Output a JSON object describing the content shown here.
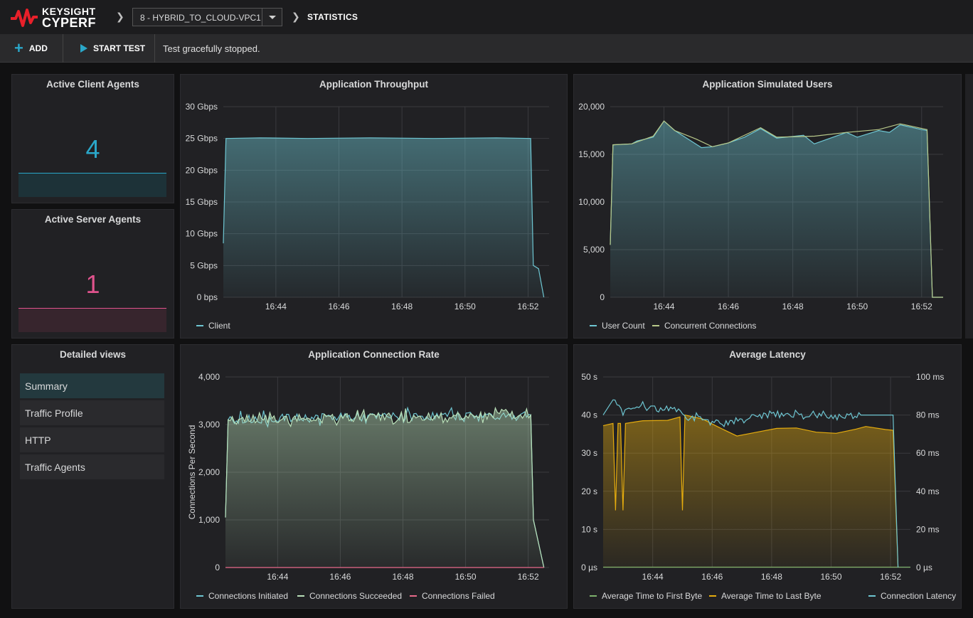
{
  "brand": {
    "line1": "KEYSIGHT",
    "line2": "CYPERF",
    "color": "#e8202a"
  },
  "header": {
    "config_name": "8 - HYBRID_TO_CLOUD-VPC1",
    "breadcrumb": "STATISTICS"
  },
  "toolbar": {
    "add_label": "ADD",
    "start_label": "START TEST",
    "status": "Test gracefully stopped."
  },
  "stats": {
    "client": {
      "title": "Active Client Agents",
      "value": "4",
      "color": "#2aa7c9"
    },
    "server": {
      "title": "Active Server Agents",
      "value": "1",
      "color": "#e0538d"
    }
  },
  "detailed_views": {
    "title": "Detailed views",
    "items": [
      {
        "label": "Summary",
        "active": true
      },
      {
        "label": "Traffic Profile",
        "active": false
      },
      {
        "label": "HTTP",
        "active": false
      },
      {
        "label": "Traffic Agents",
        "active": false
      }
    ]
  },
  "chart_data": [
    {
      "id": "throughput",
      "type": "line",
      "title": "Application Throughput",
      "x_ticks": [
        "16:44",
        "16:46",
        "16:48",
        "16:50",
        "16:52"
      ],
      "y_ticks": [
        "0 bps",
        "5 Gbps",
        "10 Gbps",
        "15 Gbps",
        "20 Gbps",
        "25 Gbps",
        "30 Gbps"
      ],
      "ylim": [
        0,
        30
      ],
      "unit": "Gbps",
      "x_range": [
        "16:42:20",
        "16:52:40"
      ],
      "series": [
        {
          "name": "Client",
          "color": "#6ec6d2",
          "fill": true,
          "points": [
            [
              "16:42:20",
              8.5
            ],
            [
              "16:42:25",
              25
            ],
            [
              "16:43:30",
              25.1
            ],
            [
              "16:45:00",
              25
            ],
            [
              "16:47:00",
              25.1
            ],
            [
              "16:49:00",
              25
            ],
            [
              "16:51:00",
              25.1
            ],
            [
              "16:52:05",
              25
            ],
            [
              "16:52:10",
              5
            ],
            [
              "16:52:20",
              4.5
            ],
            [
              "16:52:30",
              0
            ]
          ]
        }
      ]
    },
    {
      "id": "users",
      "type": "line",
      "title": "Application Simulated Users",
      "x_ticks": [
        "16:44",
        "16:46",
        "16:48",
        "16:50",
        "16:52"
      ],
      "y_ticks": [
        "0",
        "5,000",
        "10,000",
        "15,000",
        "20,000"
      ],
      "ylim": [
        0,
        20000
      ],
      "x_range": [
        "16:42:20",
        "16:52:40"
      ],
      "series": [
        {
          "name": "User Count",
          "color": "#6ec6d2",
          "fill": true,
          "points": [
            [
              "16:42:20",
              5500
            ],
            [
              "16:42:25",
              16000
            ],
            [
              "16:43:00",
              16100
            ],
            [
              "16:43:10",
              16400
            ],
            [
              "16:43:40",
              16800
            ],
            [
              "16:44:00",
              18500
            ],
            [
              "16:44:20",
              17500
            ],
            [
              "16:45:10",
              15700
            ],
            [
              "16:45:30",
              15800
            ],
            [
              "16:46:00",
              16200
            ],
            [
              "16:46:30",
              16800
            ],
            [
              "16:47:00",
              17700
            ],
            [
              "16:47:30",
              16700
            ],
            [
              "16:48:20",
              17000
            ],
            [
              "16:48:40",
              16100
            ],
            [
              "16:49:40",
              17300
            ],
            [
              "16:50:00",
              16800
            ],
            [
              "16:50:40",
              17500
            ],
            [
              "16:51:00",
              17300
            ],
            [
              "16:51:20",
              18100
            ],
            [
              "16:52:00",
              17600
            ],
            [
              "16:52:10",
              17500
            ],
            [
              "16:52:20",
              0
            ],
            [
              "16:52:40",
              0
            ]
          ]
        },
        {
          "name": "Concurrent Connections",
          "color": "#b8c98a",
          "fill": false,
          "points": [
            [
              "16:42:20",
              5500
            ],
            [
              "16:42:25",
              16000
            ],
            [
              "16:43:00",
              16100
            ],
            [
              "16:43:40",
              16900
            ],
            [
              "16:44:00",
              18500
            ],
            [
              "16:44:20",
              17500
            ],
            [
              "16:45:00",
              16600
            ],
            [
              "16:45:30",
              15800
            ],
            [
              "16:46:00",
              16200
            ],
            [
              "16:47:00",
              17800
            ],
            [
              "16:47:30",
              16800
            ],
            [
              "16:48:40",
              16900
            ],
            [
              "16:49:40",
              17300
            ],
            [
              "16:50:40",
              17600
            ],
            [
              "16:51:20",
              18200
            ],
            [
              "16:52:10",
              17600
            ],
            [
              "16:52:20",
              0
            ],
            [
              "16:52:40",
              0
            ]
          ]
        }
      ],
      "legend": [
        "User Count",
        "Concurrent Connections"
      ]
    },
    {
      "id": "connrate",
      "type": "line",
      "title": "Application Connection Rate",
      "ylabel": "Connections Per Second",
      "x_ticks": [
        "16:44",
        "16:46",
        "16:48",
        "16:50",
        "16:52"
      ],
      "y_ticks": [
        "0",
        "1,000",
        "2,000",
        "3,000",
        "4,000"
      ],
      "ylim": [
        0,
        4000
      ],
      "x_range": [
        "16:42:20",
        "16:52:40"
      ],
      "series": [
        {
          "name": "Connections Initiated",
          "color": "#6ec6d2",
          "fill": false,
          "base": 3200,
          "noise": 180,
          "points": [
            [
              "16:42:20",
              1050
            ],
            [
              "16:42:25",
              3100
            ],
            [
              "16:52:05",
              3200
            ],
            [
              "16:52:10",
              1000
            ],
            [
              "16:52:30",
              0
            ]
          ]
        },
        {
          "name": "Connections Succeeded",
          "color": "#b9e0b9",
          "fill": true,
          "base": 3200,
          "noise": 180,
          "points": [
            [
              "16:42:20",
              1050
            ],
            [
              "16:42:25",
              3100
            ],
            [
              "16:52:05",
              3200
            ],
            [
              "16:52:10",
              1000
            ],
            [
              "16:52:30",
              0
            ]
          ]
        },
        {
          "name": "Connections Failed",
          "color": "#e86a8a",
          "fill": false,
          "points": [
            [
              "16:42:20",
              0
            ],
            [
              "16:52:30",
              0
            ]
          ]
        }
      ]
    },
    {
      "id": "latency",
      "type": "line",
      "title": "Average Latency",
      "x_ticks": [
        "16:44",
        "16:46",
        "16:48",
        "16:50",
        "16:52"
      ],
      "y_ticks_left": [
        "0 µs",
        "10 s",
        "20 s",
        "30 s",
        "40 s",
        "50 s"
      ],
      "y_ticks_right": [
        "0 µs",
        "20 ms",
        "40 ms",
        "60 ms",
        "80 ms",
        "100 ms"
      ],
      "ylim_left": [
        0,
        50
      ],
      "ylim_right": [
        0,
        100
      ],
      "x_range": [
        "16:42:20",
        "16:52:40"
      ],
      "series": [
        {
          "name": "Average Time to First Byte",
          "color": "#7eb26d",
          "axis": "left",
          "points": [
            [
              "16:42:20",
              0.1
            ],
            [
              "16:52:40",
              0.1
            ]
          ]
        },
        {
          "name": "Average Time to Last Byte",
          "color": "#e5ac0e",
          "axis": "left",
          "fill": true,
          "points": [
            [
              "16:42:20",
              37.2
            ],
            [
              "16:42:40",
              37.8
            ],
            [
              "16:42:45",
              15
            ],
            [
              "16:42:50",
              37.8
            ],
            [
              "16:42:55",
              37.8
            ],
            [
              "16:43:00",
              15
            ],
            [
              "16:43:05",
              37.8
            ],
            [
              "16:43:40",
              38.5
            ],
            [
              "16:44:30",
              38.6
            ],
            [
              "16:44:55",
              39.5
            ],
            [
              "16:45:00",
              15
            ],
            [
              "16:45:05",
              40
            ],
            [
              "16:45:40",
              39
            ],
            [
              "16:46:10",
              37
            ],
            [
              "16:46:50",
              34.5
            ],
            [
              "16:47:30",
              35.5
            ],
            [
              "16:48:10",
              36.5
            ],
            [
              "16:48:50",
              36.6
            ],
            [
              "16:49:30",
              35.5
            ],
            [
              "16:50:10",
              35.2
            ],
            [
              "16:50:50",
              36.3
            ],
            [
              "16:51:10",
              37
            ],
            [
              "16:51:50",
              36.2
            ],
            [
              "16:52:05",
              36
            ],
            [
              "16:52:15",
              0
            ]
          ]
        },
        {
          "name": "Connection Latency",
          "color": "#6ec6d2",
          "axis": "right",
          "noise": 3,
          "points": [
            [
              "16:42:20",
              80
            ],
            [
              "16:42:40",
              88
            ],
            [
              "16:43:00",
              82
            ],
            [
              "16:43:40",
              86
            ],
            [
              "16:44:10",
              82
            ],
            [
              "16:44:40",
              84
            ],
            [
              "16:45:10",
              78
            ],
            [
              "16:45:40",
              78
            ],
            [
              "16:46:10",
              74
            ],
            [
              "16:47:00",
              78
            ],
            [
              "16:48:00",
              80
            ],
            [
              "16:49:00",
              80
            ],
            [
              "16:50:00",
              79
            ],
            [
              "16:51:00",
              80
            ],
            [
              "16:52:05",
              80
            ],
            [
              "16:52:15",
              0
            ]
          ]
        }
      ]
    }
  ]
}
